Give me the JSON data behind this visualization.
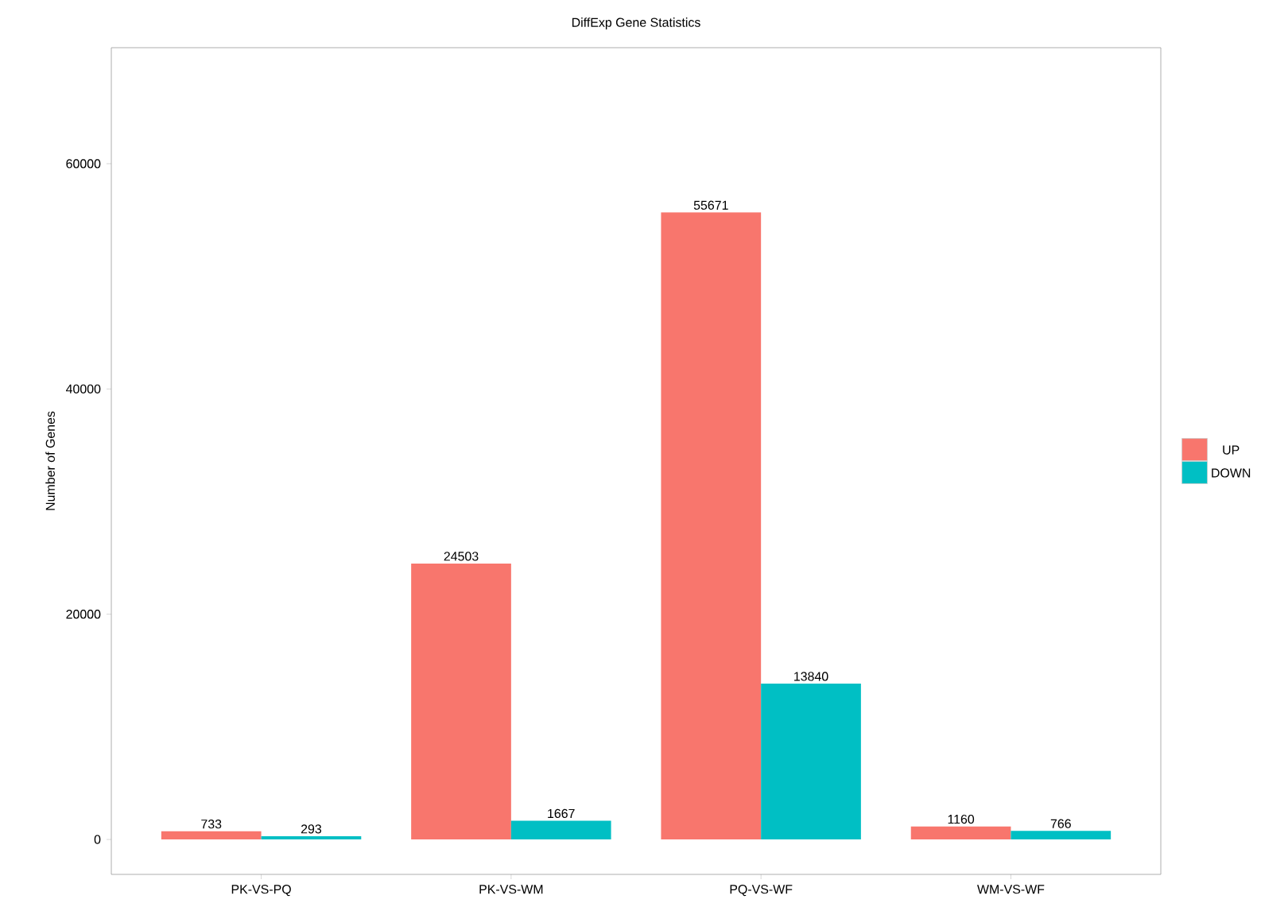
{
  "chart_data": {
    "type": "bar",
    "title": "DiffExp Gene Statistics",
    "ylabel": "Number of Genes",
    "categories": [
      "PK-VS-PQ",
      "PK-VS-WM",
      "PQ-VS-WF",
      "WM-VS-WF"
    ],
    "series": [
      {
        "name": "UP",
        "color": "#f8766d",
        "values": [
          733,
          24503,
          55671,
          1160
        ]
      },
      {
        "name": "DOWN",
        "color": "#00bfc4",
        "values": [
          293,
          1667,
          13840,
          766
        ]
      }
    ],
    "ylim": [
      -3100,
      70300
    ],
    "yticks": [
      0,
      20000,
      40000,
      60000
    ],
    "data_labels": true,
    "legend": "right"
  }
}
